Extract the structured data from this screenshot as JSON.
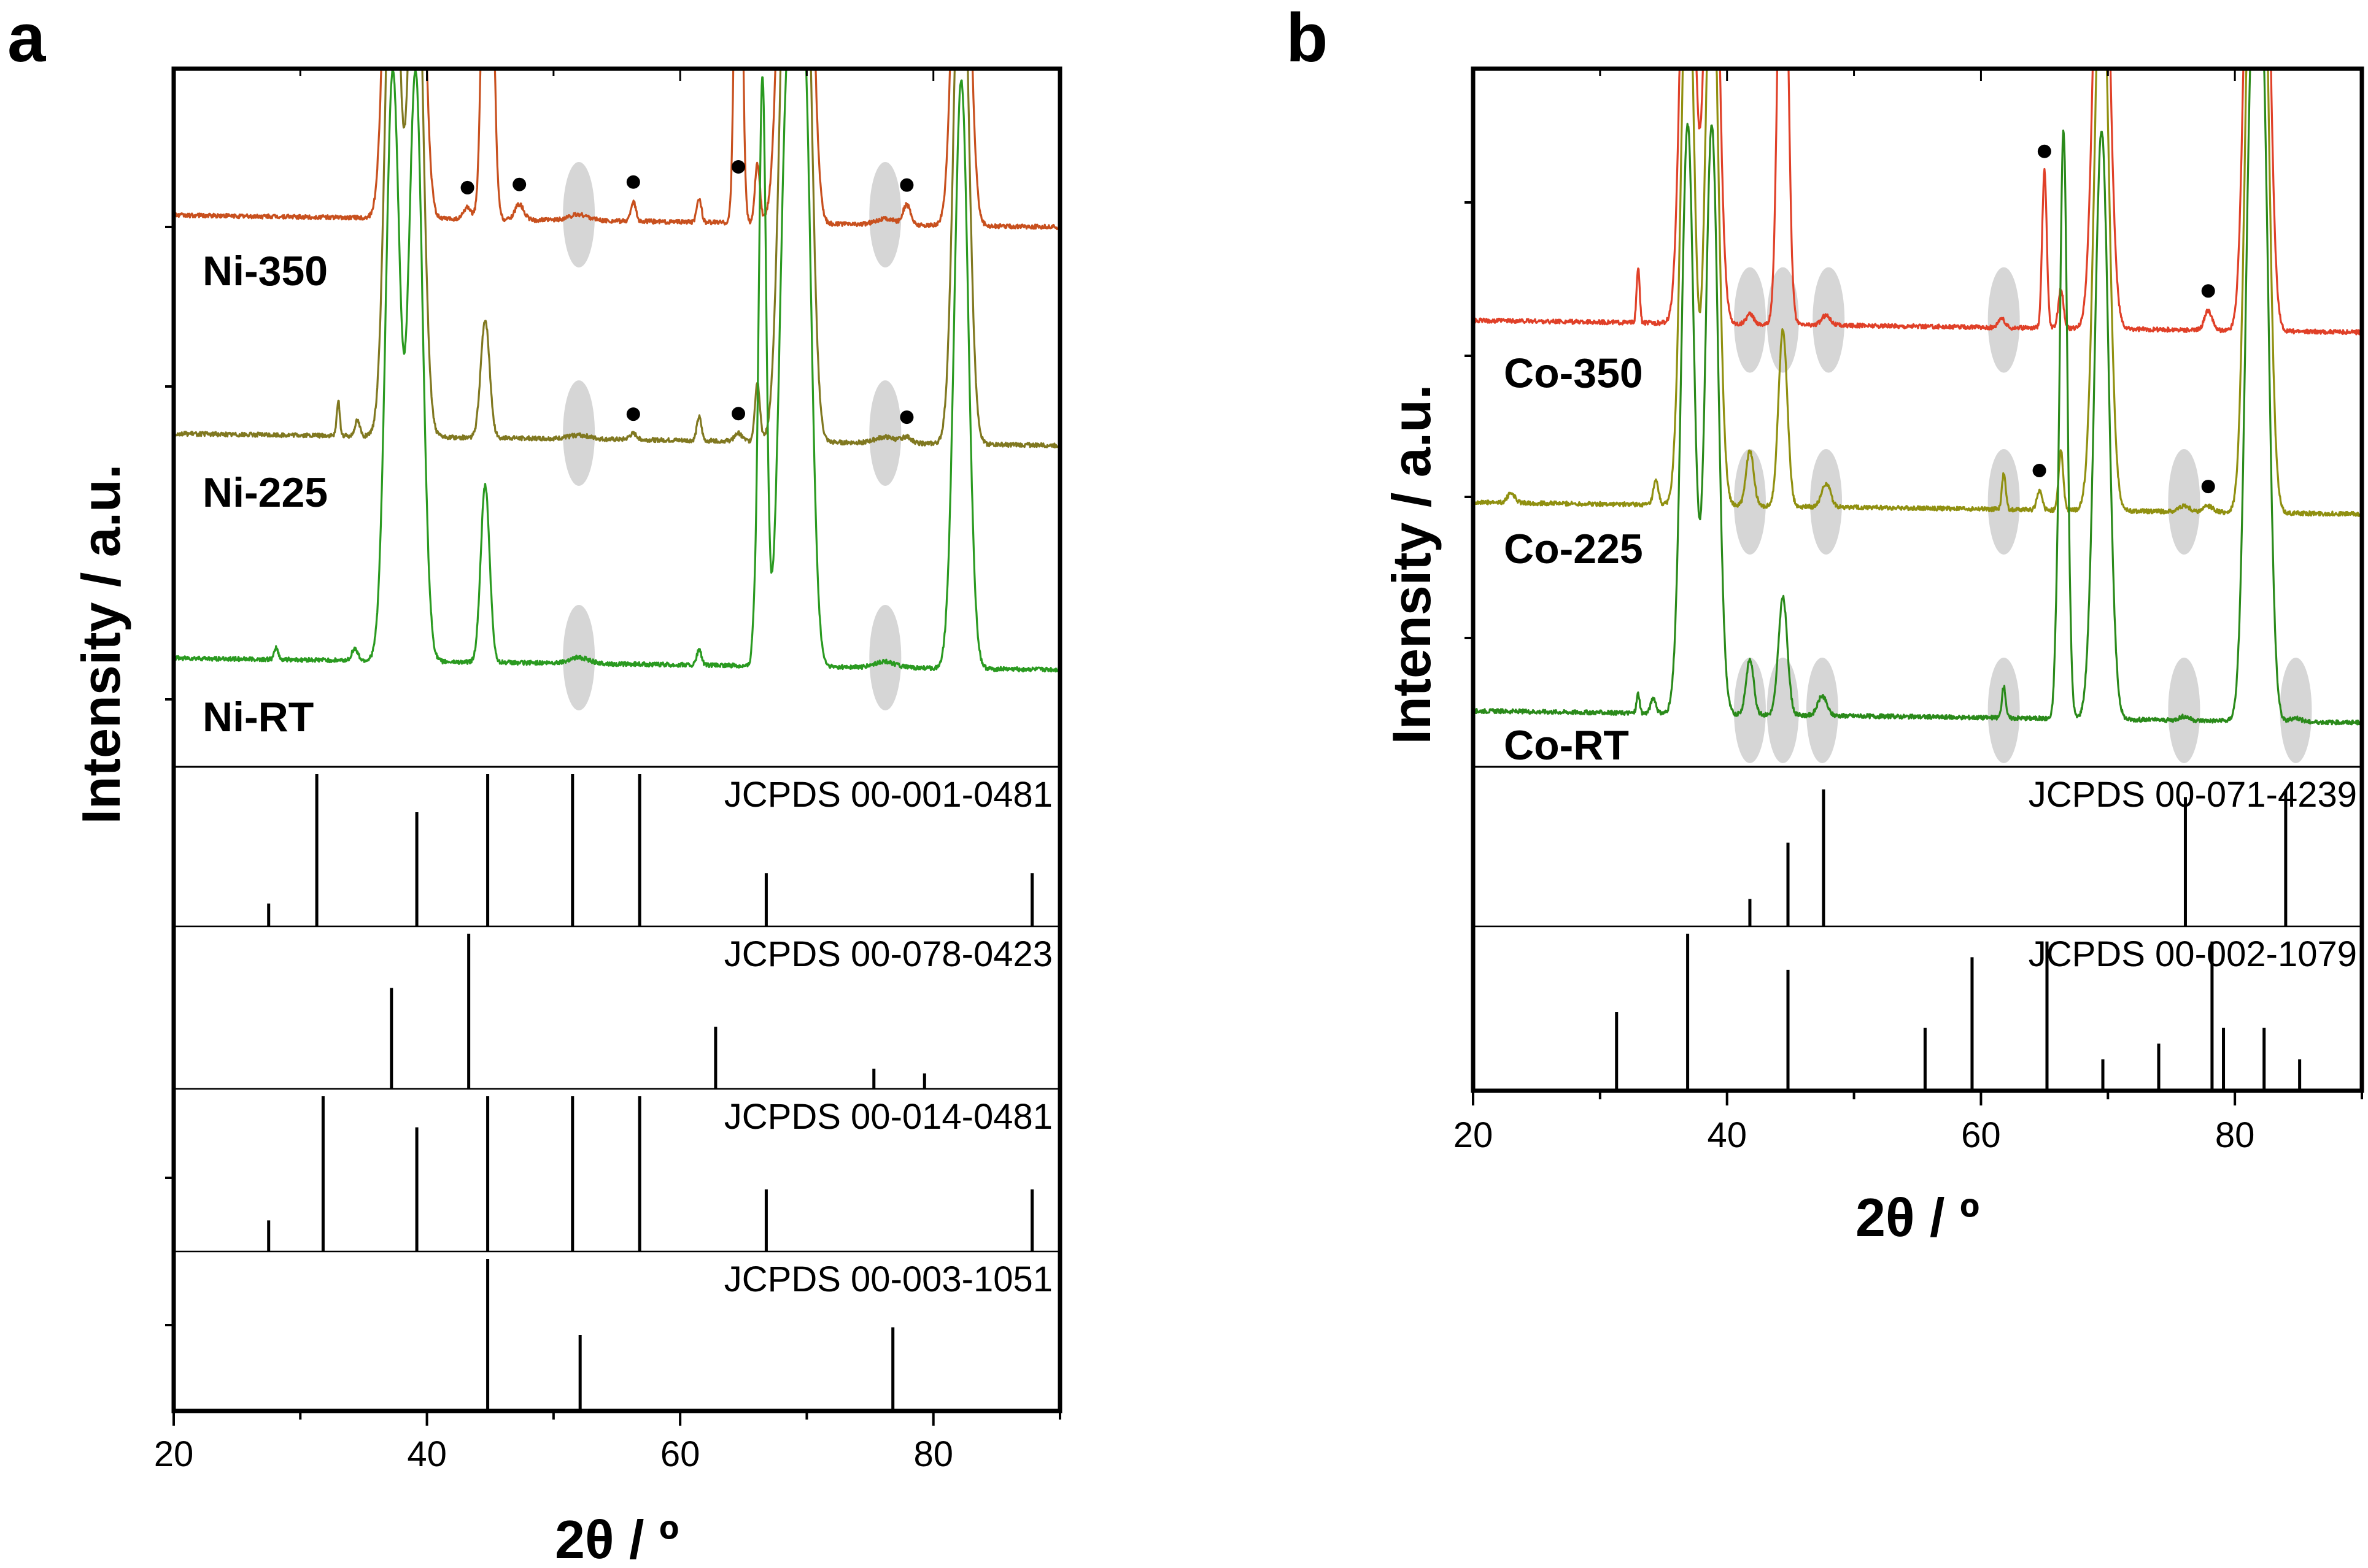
{
  "figure": {
    "panel_a_label": "a",
    "panel_b_label": "b"
  },
  "chart_data": [
    {
      "panel": "a",
      "type": "line",
      "xlabel": "2θ / º",
      "ylabel": "Intensity / a.u.",
      "xlim": [
        20,
        90
      ],
      "xticks": [
        20,
        40,
        60,
        80
      ],
      "series": [
        {
          "name": "Ni-350",
          "color": "#c8501e",
          "baseline": 75,
          "peaks": [
            [
              37.3,
              300,
              0.55
            ],
            [
              39.1,
              300,
              0.55
            ],
            [
              44.8,
              300,
              0.35
            ],
            [
              43.2,
              6,
              0.3
            ],
            [
              47.3,
              8,
              0.35
            ],
            [
              56.3,
              10,
              0.2
            ],
            [
              61.5,
              12,
              0.18
            ],
            [
              64.6,
              300,
              0.25
            ],
            [
              66.1,
              30,
              0.2
            ],
            [
              68.5,
              300,
              0.6
            ],
            [
              69.8,
              300,
              0.55
            ],
            [
              82.2,
              300,
              0.55
            ],
            [
              77.9,
              10,
              0.3
            ],
            [
              52.0,
              3,
              0.8
            ],
            [
              76.2,
              3,
              0.8
            ]
          ],
          "markers": [
            43.2,
            47.3,
            56.3,
            64.6,
            77.9
          ],
          "ellipses": [
            52.0,
            76.2
          ]
        },
        {
          "name": "Ni-225",
          "color": "#807820",
          "baseline": 45,
          "peaks": [
            [
              33.0,
              18,
              0.12
            ],
            [
              34.5,
              8,
              0.2
            ],
            [
              37.3,
              300,
              0.55
            ],
            [
              39.1,
              300,
              0.55
            ],
            [
              44.6,
              60,
              0.35
            ],
            [
              56.3,
              3,
              0.3
            ],
            [
              61.5,
              12,
              0.18
            ],
            [
              64.6,
              4,
              0.3
            ],
            [
              66.1,
              30,
              0.2
            ],
            [
              68.5,
              300,
              0.6
            ],
            [
              69.8,
              300,
              0.55
            ],
            [
              82.2,
              300,
              0.55
            ],
            [
              77.9,
              3,
              0.4
            ],
            [
              52.0,
              2,
              0.8
            ],
            [
              76.2,
              3,
              0.8
            ]
          ],
          "markers": [
            56.3,
            64.6,
            77.9
          ],
          "ellipses": [
            52.0,
            76.2
          ]
        },
        {
          "name": "Ni-RT",
          "color": "#2a9a20",
          "baseline": 15,
          "peaks": [
            [
              28.1,
              6,
              0.15
            ],
            [
              34.3,
              6,
              0.25
            ],
            [
              37.3,
              300,
              0.55
            ],
            [
              39.1,
              300,
              0.55
            ],
            [
              44.6,
              90,
              0.35
            ],
            [
              61.5,
              8,
              0.18
            ],
            [
              65.8,
              10,
              0.15
            ],
            [
              66.5,
              300,
              0.3
            ],
            [
              68.5,
              300,
              0.6
            ],
            [
              69.8,
              300,
              0.55
            ],
            [
              82.2,
              300,
              0.55
            ],
            [
              52.0,
              3,
              0.8
            ],
            [
              76.2,
              3,
              0.8
            ]
          ],
          "markers": [],
          "ellipses": [
            52.0,
            76.2
          ]
        }
      ],
      "references": [
        {
          "label": "JCPDS 00-001-0481",
          "lines": [
            [
              27.5,
              0.15
            ],
            [
              31.3,
              1.0
            ],
            [
              39.2,
              0.75
            ],
            [
              44.8,
              1.0
            ],
            [
              51.5,
              1.0
            ],
            [
              56.8,
              1.0
            ],
            [
              66.8,
              0.35
            ],
            [
              87.8,
              0.35
            ]
          ]
        },
        {
          "label": "JCPDS 00-078-0423",
          "lines": [
            [
              37.2,
              0.65
            ],
            [
              43.3,
              1.0
            ],
            [
              62.8,
              0.4
            ],
            [
              75.3,
              0.13
            ],
            [
              79.3,
              0.1
            ]
          ]
        },
        {
          "label": "JCPDS 00-014-0481",
          "lines": [
            [
              27.5,
              0.2
            ],
            [
              31.8,
              1.0
            ],
            [
              39.2,
              0.8
            ],
            [
              44.8,
              1.0
            ],
            [
              51.5,
              1.0
            ],
            [
              56.8,
              1.0
            ],
            [
              66.8,
              0.4
            ],
            [
              87.8,
              0.4
            ]
          ]
        },
        {
          "label": "JCPDS 00-003-1051",
          "lines": [
            [
              44.8,
              1.0
            ],
            [
              52.1,
              0.5
            ],
            [
              76.8,
              0.55
            ]
          ]
        }
      ]
    },
    {
      "panel": "b",
      "type": "line",
      "xlabel": "2θ / º",
      "ylabel": "Intensity / a.u.",
      "xlim": [
        20,
        90
      ],
      "xticks": [
        20,
        40,
        60,
        80
      ],
      "series": [
        {
          "name": "Co-350",
          "color": "#e04028",
          "baseline": 62,
          "peaks": [
            [
              33.0,
              28,
              0.12
            ],
            [
              36.9,
              300,
              0.5
            ],
            [
              38.8,
              300,
              0.5
            ],
            [
              41.8,
              5,
              0.3
            ],
            [
              44.4,
              300,
              0.35
            ],
            [
              47.8,
              5,
              0.35
            ],
            [
              61.6,
              5,
              0.25
            ],
            [
              65.0,
              80,
              0.18
            ],
            [
              66.3,
              20,
              0.2
            ],
            [
              69.5,
              300,
              0.55
            ],
            [
              81.3,
              300,
              0.5
            ],
            [
              82.2,
              300,
              0.5
            ],
            [
              77.9,
              10,
              0.3
            ]
          ],
          "markers": [
            65.0,
            77.9
          ],
          "ellipses": [
            41.8,
            44.4,
            48.0,
            61.8
          ]
        },
        {
          "name": "Co-225",
          "color": "#909010",
          "baseline": 35,
          "peaks": [
            [
              23.0,
              5,
              0.3
            ],
            [
              34.4,
              12,
              0.2
            ],
            [
              36.9,
              300,
              0.5
            ],
            [
              38.8,
              300,
              0.5
            ],
            [
              41.8,
              28,
              0.3
            ],
            [
              44.4,
              90,
              0.35
            ],
            [
              47.8,
              12,
              0.35
            ],
            [
              61.8,
              18,
              0.15
            ],
            [
              64.6,
              10,
              0.2
            ],
            [
              66.3,
              30,
              0.18
            ],
            [
              69.5,
              300,
              0.55
            ],
            [
              81.3,
              300,
              0.5
            ],
            [
              82.2,
              300,
              0.5
            ],
            [
              76.0,
              3,
              0.4
            ],
            [
              77.9,
              3,
              0.4
            ]
          ],
          "markers": [
            64.6,
            77.9
          ],
          "ellipses": [
            41.8,
            47.8,
            61.8,
            76.0
          ]
        },
        {
          "name": "Co-RT",
          "color": "#2a8a1a",
          "baseline": 10,
          "peaks": [
            [
              33.0,
              10,
              0.12
            ],
            [
              34.2,
              8,
              0.2
            ],
            [
              36.9,
              300,
              0.5
            ],
            [
              38.8,
              300,
              0.5
            ],
            [
              41.8,
              28,
              0.3
            ],
            [
              44.4,
              60,
              0.35
            ],
            [
              47.5,
              10,
              0.35
            ],
            [
              61.8,
              16,
              0.15
            ],
            [
              65.9,
              15,
              0.15
            ],
            [
              66.5,
              300,
              0.3
            ],
            [
              69.5,
              300,
              0.55
            ],
            [
              81.3,
              300,
              0.5
            ],
            [
              82.2,
              300,
              0.5
            ],
            [
              76.0,
              2,
              0.4
            ],
            [
              84.8,
              2,
              0.4
            ]
          ],
          "markers": [],
          "ellipses": [
            41.8,
            44.4,
            47.5,
            61.8,
            76.0,
            84.8
          ]
        }
      ],
      "references": [
        {
          "label": "JCPDS 00-071-4239",
          "lines": [
            [
              41.8,
              0.18
            ],
            [
              44.8,
              0.55
            ],
            [
              47.6,
              0.9
            ],
            [
              76.1,
              0.85
            ],
            [
              84.0,
              0.9
            ]
          ]
        },
        {
          "label": "JCPDS 00-002-1079",
          "lines": [
            [
              31.3,
              0.5
            ],
            [
              36.9,
              1.0
            ],
            [
              44.8,
              0.77
            ],
            [
              55.6,
              0.4
            ],
            [
              59.3,
              0.85
            ],
            [
              65.2,
              0.95
            ],
            [
              69.6,
              0.2
            ],
            [
              74.0,
              0.3
            ],
            [
              78.2,
              0.95
            ],
            [
              79.1,
              0.4
            ],
            [
              82.3,
              0.4
            ],
            [
              85.1,
              0.2
            ]
          ]
        }
      ]
    }
  ]
}
